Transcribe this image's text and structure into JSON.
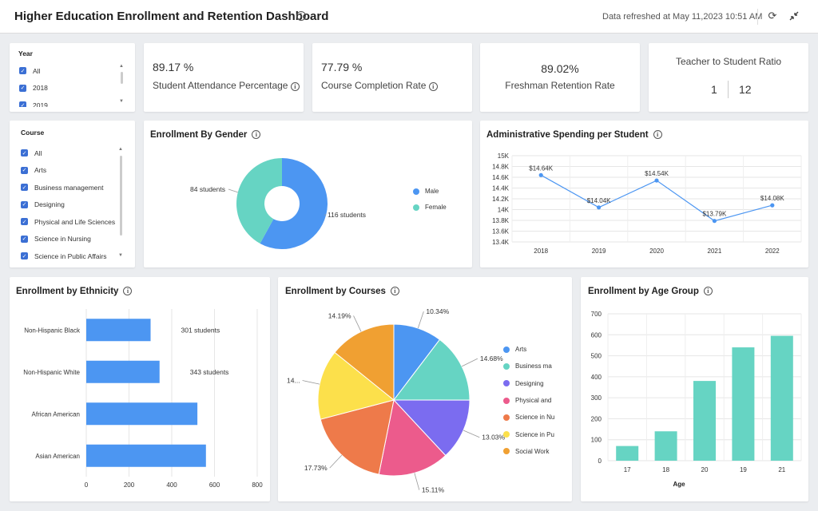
{
  "header": {
    "title": "Higher Education Enrollment and Retention Dashboard",
    "refreshed": "Data refreshed at May 11,2023 10:51 AM"
  },
  "filters": {
    "year": {
      "label": "Year",
      "items": [
        "All",
        "2018",
        "2019"
      ]
    },
    "course": {
      "label": "Course",
      "items": [
        "All",
        "Arts",
        "Business management",
        "Designing",
        "Physical and Life Sciences",
        "Science in Nursing",
        "Science in Public Affairs"
      ]
    }
  },
  "kpis": {
    "attendance": {
      "value": "89.17 %",
      "label": "Student Attendance Percentage"
    },
    "completion": {
      "value": "77.79 %",
      "label": "Course Completion Rate"
    },
    "retention": {
      "value": "89.02%",
      "label": "Freshman Retention Rate"
    },
    "ratio": {
      "label": "Teacher to Student Ratio",
      "teacher": "1",
      "student": "12"
    }
  },
  "colors": {
    "blue": "#4c96f2",
    "teal": "#66d4c3",
    "purple": "#7b6cf0",
    "pink": "#ec5b8c",
    "orange": "#ee7a4a",
    "yellow": "#fce04b",
    "amber": "#f0a032",
    "line": "#4c96f2"
  },
  "charts": {
    "gender_title": "Enrollment By Gender",
    "spending_title": "Administrative Spending per Student",
    "ethnicity_title": "Enrollment by Ethnicity",
    "courses_title": "Enrollment by Courses",
    "age_title": "Enrollment by Age Group"
  },
  "chart_data": [
    {
      "type": "pie",
      "title": "Enrollment By Gender",
      "donut": true,
      "labels": [
        "Male",
        "Female"
      ],
      "values": [
        116,
        84
      ],
      "data_labels": [
        "116 students",
        "84 students"
      ],
      "legend": "right"
    },
    {
      "type": "line",
      "title": "Administrative Spending per Student",
      "categories": [
        "2018",
        "2019",
        "2020",
        "2021",
        "2022"
      ],
      "values": [
        14.64,
        14.04,
        14.54,
        13.79,
        14.08
      ],
      "data_labels": [
        "$14.64K",
        "$14.04K",
        "$14.54K",
        "$13.79K",
        "$14.08K"
      ],
      "ylim": [
        13.4,
        15.0
      ],
      "yticks": [
        "15K",
        "14.8K",
        "14.6K",
        "14.4K",
        "14.2K",
        "14K",
        "13.8K",
        "13.6K",
        "13.4K"
      ],
      "grid": true
    },
    {
      "type": "bar",
      "orientation": "horizontal",
      "title": "Enrollment by Ethnicity",
      "categories": [
        "Non-Hispanic Black",
        "Non-Hispanic White",
        "African American",
        "Asian American"
      ],
      "values": [
        301,
        343,
        520,
        560
      ],
      "data_labels": [
        "301 students",
        "343 students",
        "",
        ""
      ],
      "xlim": [
        0,
        800
      ],
      "xticks": [
        "0",
        "200",
        "400",
        "600",
        "800"
      ],
      "grid": true
    },
    {
      "type": "pie",
      "title": "Enrollment by Courses",
      "labels": [
        "Arts",
        "Business ma",
        "Designing",
        "Physical and",
        "Science in Nu",
        "Science in Pu",
        "Social Work"
      ],
      "values": [
        10.34,
        14.68,
        13.03,
        15.11,
        17.73,
        14.9,
        14.19
      ],
      "data_labels": [
        "10.34%",
        "14.68%",
        "13.03%",
        "15.11%",
        "17.73%",
        "14...",
        "14.19%"
      ],
      "legend": "right"
    },
    {
      "type": "bar",
      "title": "Enrollment by Age Group",
      "categories": [
        "17",
        "18",
        "20",
        "19",
        "21"
      ],
      "values": [
        70,
        140,
        380,
        540,
        595
      ],
      "xlabel": "Age",
      "ylim": [
        0,
        700
      ],
      "yticks": [
        "0",
        "100",
        "200",
        "300",
        "400",
        "500",
        "600",
        "700"
      ],
      "grid": true
    }
  ]
}
